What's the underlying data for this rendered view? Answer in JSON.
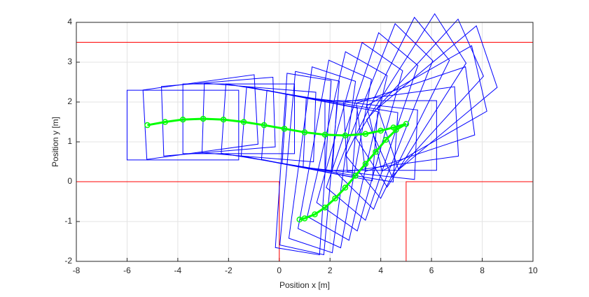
{
  "chart_data": {
    "type": "trajectory",
    "xlabel": "Position x [m]",
    "ylabel": "Position y [m]",
    "xlim": [
      -8,
      10
    ],
    "ylim": [
      -2,
      4
    ],
    "xticks": [
      -8,
      -6,
      -4,
      -2,
      0,
      2,
      4,
      6,
      8,
      10
    ],
    "yticks": [
      -2,
      -1,
      0,
      1,
      2,
      3,
      4
    ],
    "grid": true,
    "boundary_color": "#ff0000",
    "boundaries": [
      {
        "x": [
          -8,
          10
        ],
        "y": [
          3.5,
          3.5
        ]
      },
      {
        "x": [
          -8,
          0,
          0,
          5,
          5,
          10
        ],
        "y": [
          0,
          0,
          -2,
          -2,
          0,
          0
        ]
      }
    ],
    "vehicle_color": "#0000ff",
    "path_color": "#00ff00",
    "vehicle_rear_overhang": 0.8,
    "vehicle_front_overhang": 3.6,
    "vehicle_width": 1.75,
    "path": {
      "x": [
        -5.2,
        -4.5,
        -3.8,
        -3.0,
        -2.2,
        -1.4,
        -0.6,
        0.2,
        1.0,
        1.8,
        2.6,
        3.4,
        4.0,
        4.5,
        5.0,
        4.6,
        4.2,
        3.8,
        3.4,
        3.0,
        2.6,
        2.2,
        1.8,
        1.4,
        1.0,
        0.8
      ],
      "y": [
        1.42,
        1.5,
        1.56,
        1.58,
        1.56,
        1.5,
        1.42,
        1.33,
        1.24,
        1.18,
        1.16,
        1.2,
        1.28,
        1.36,
        1.45,
        1.3,
        1.05,
        0.75,
        0.45,
        0.15,
        -0.15,
        -0.42,
        -0.65,
        -0.82,
        -0.92,
        -0.95
      ],
      "heading": [
        0,
        5,
        3,
        0,
        -3,
        -6,
        -7,
        -7,
        -6,
        -4,
        0,
        5,
        12,
        20,
        28,
        35,
        45,
        52,
        58,
        62,
        66,
        70,
        74,
        78,
        82,
        84
      ]
    }
  }
}
